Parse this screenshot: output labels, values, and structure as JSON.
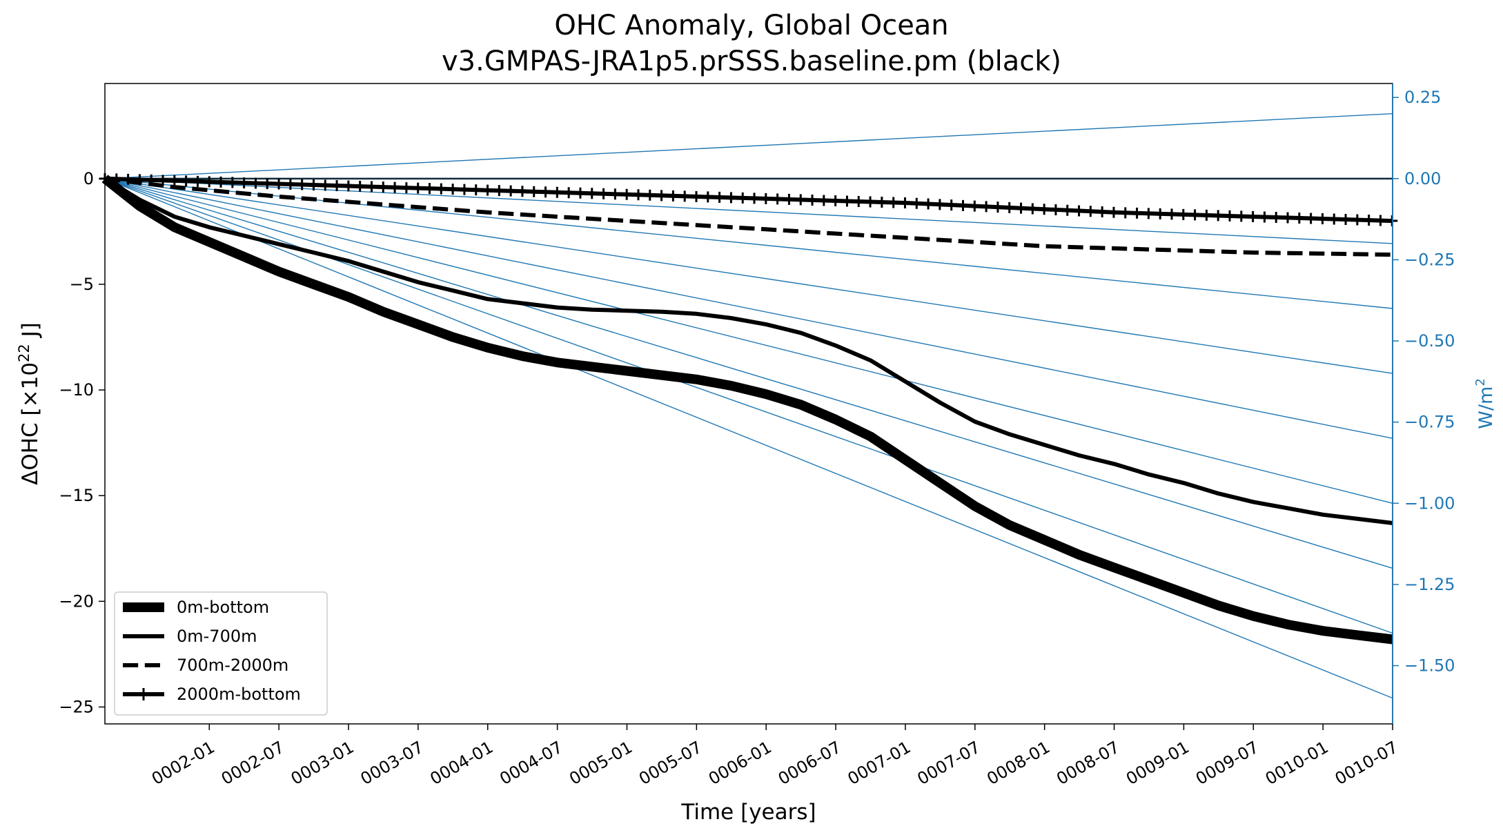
{
  "chart_data": {
    "type": "line",
    "title": "OHC Anomaly, Global Ocean",
    "subtitle": "v3.GMPAS-JRA1p5.prSSS.baseline.pm (black)",
    "xlabel": "Time [years]",
    "ylabel": "ΔOHC [×10",
    "ylabel_superscript": "22",
    "ylabel_suffix": " J]",
    "ylabel_right": "W/m",
    "ylabel_right_superscript": "2",
    "xlim": [
      1.25,
      10.5
    ],
    "ylim": [
      -25.8,
      4.5
    ],
    "ylim_right": [
      -1.6795,
      0.2929
    ],
    "grid": false,
    "legend_position": "lower-left",
    "x_ticks": [
      {
        "value": 2.0,
        "label": "0002-01"
      },
      {
        "value": 2.5,
        "label": "0002-07"
      },
      {
        "value": 3.0,
        "label": "0003-01"
      },
      {
        "value": 3.5,
        "label": "0003-07"
      },
      {
        "value": 4.0,
        "label": "0004-01"
      },
      {
        "value": 4.5,
        "label": "0004-07"
      },
      {
        "value": 5.0,
        "label": "0005-01"
      },
      {
        "value": 5.5,
        "label": "0005-07"
      },
      {
        "value": 6.0,
        "label": "0006-01"
      },
      {
        "value": 6.5,
        "label": "0006-07"
      },
      {
        "value": 7.0,
        "label": "0007-01"
      },
      {
        "value": 7.5,
        "label": "0007-07"
      },
      {
        "value": 8.0,
        "label": "0008-01"
      },
      {
        "value": 8.5,
        "label": "0008-07"
      },
      {
        "value": 9.0,
        "label": "0009-01"
      },
      {
        "value": 9.5,
        "label": "0009-07"
      },
      {
        "value": 10.0,
        "label": "0010-01"
      },
      {
        "value": 10.5,
        "label": "0010-07"
      }
    ],
    "y_ticks": [
      {
        "value": 0,
        "label": "0"
      },
      {
        "value": -5,
        "label": "−5"
      },
      {
        "value": -10,
        "label": "−10"
      },
      {
        "value": -15,
        "label": "−15"
      },
      {
        "value": -20,
        "label": "−20"
      },
      {
        "value": -25,
        "label": "−25"
      }
    ],
    "y_ticks_right": [
      {
        "value": 0.25,
        "label": "0.25"
      },
      {
        "value": 0.0,
        "label": "0.00"
      },
      {
        "value": -0.25,
        "label": "−0.25"
      },
      {
        "value": -0.5,
        "label": "−0.50"
      },
      {
        "value": -0.75,
        "label": "−0.75"
      },
      {
        "value": -1.0,
        "label": "−1.00"
      },
      {
        "value": -1.25,
        "label": "−1.25"
      },
      {
        "value": -1.5,
        "label": "−1.50"
      }
    ],
    "reference_lines": {
      "color": "#1f77b4",
      "origin_x": 1.25,
      "end_x": 10.5,
      "end_values_right": [
        0.2,
        0.0,
        -0.2,
        -0.4,
        -0.6,
        -0.8,
        -1.0,
        -1.2,
        -1.4,
        -1.6
      ]
    },
    "zero_line_color": "#0d2a3a",
    "series": [
      {
        "name": "0m-bottom",
        "color": "#000000",
        "style": "solid",
        "width": 14,
        "x": [
          1.25,
          1.5,
          1.75,
          2.0,
          2.25,
          2.5,
          2.75,
          3.0,
          3.25,
          3.5,
          3.75,
          4.0,
          4.25,
          4.5,
          4.75,
          5.0,
          5.25,
          5.5,
          5.75,
          6.0,
          6.25,
          6.5,
          6.75,
          7.0,
          7.25,
          7.5,
          7.75,
          8.0,
          8.25,
          8.5,
          8.75,
          9.0,
          9.25,
          9.5,
          9.75,
          10.0,
          10.25,
          10.5
        ],
        "values": [
          0.0,
          -1.3,
          -2.3,
          -3.0,
          -3.7,
          -4.4,
          -5.0,
          -5.6,
          -6.3,
          -6.9,
          -7.5,
          -8.0,
          -8.4,
          -8.7,
          -8.9,
          -9.1,
          -9.3,
          -9.5,
          -9.8,
          -10.2,
          -10.7,
          -11.4,
          -12.2,
          -13.3,
          -14.4,
          -15.5,
          -16.4,
          -17.1,
          -17.8,
          -18.4,
          -19.0,
          -19.6,
          -20.2,
          -20.7,
          -21.1,
          -21.4,
          -21.6,
          -21.8
        ]
      },
      {
        "name": "0m-700m",
        "color": "#000000",
        "style": "solid",
        "width": 6,
        "x": [
          1.25,
          1.5,
          1.75,
          2.0,
          2.25,
          2.5,
          2.75,
          3.0,
          3.25,
          3.5,
          3.75,
          4.0,
          4.25,
          4.5,
          4.75,
          5.0,
          5.25,
          5.5,
          5.75,
          6.0,
          6.25,
          6.5,
          6.75,
          7.0,
          7.25,
          7.5,
          7.75,
          8.0,
          8.25,
          8.5,
          8.75,
          9.0,
          9.25,
          9.5,
          9.75,
          10.0,
          10.25,
          10.5
        ],
        "values": [
          0.0,
          -1.0,
          -1.8,
          -2.3,
          -2.7,
          -3.1,
          -3.5,
          -3.9,
          -4.4,
          -4.9,
          -5.3,
          -5.7,
          -5.9,
          -6.1,
          -6.2,
          -6.25,
          -6.3,
          -6.4,
          -6.6,
          -6.9,
          -7.3,
          -7.9,
          -8.6,
          -9.6,
          -10.6,
          -11.5,
          -12.1,
          -12.6,
          -13.1,
          -13.5,
          -14.0,
          -14.4,
          -14.9,
          -15.3,
          -15.6,
          -15.9,
          -16.1,
          -16.3
        ]
      },
      {
        "name": "700m-2000m",
        "color": "#000000",
        "style": "dashed",
        "width": 6,
        "x": [
          1.25,
          1.5,
          1.75,
          2.0,
          2.5,
          3.0,
          3.5,
          4.0,
          4.5,
          5.0,
          5.5,
          6.0,
          6.5,
          7.0,
          7.5,
          8.0,
          8.5,
          9.0,
          9.5,
          10.0,
          10.5
        ],
        "values": [
          0.0,
          -0.2,
          -0.4,
          -0.55,
          -0.85,
          -1.1,
          -1.35,
          -1.6,
          -1.8,
          -2.0,
          -2.2,
          -2.4,
          -2.6,
          -2.8,
          -3.0,
          -3.2,
          -3.3,
          -3.4,
          -3.5,
          -3.55,
          -3.6
        ]
      },
      {
        "name": "2000m-bottom",
        "color": "#000000",
        "style": "solid-plus-markers",
        "width": 6,
        "x": [
          1.25,
          1.5,
          2.0,
          2.5,
          3.0,
          3.5,
          4.0,
          4.5,
          5.0,
          5.5,
          6.0,
          6.5,
          7.0,
          7.5,
          8.0,
          8.5,
          9.0,
          9.5,
          10.0,
          10.5
        ],
        "values": [
          0.0,
          -0.05,
          -0.15,
          -0.25,
          -0.35,
          -0.45,
          -0.55,
          -0.65,
          -0.75,
          -0.85,
          -0.95,
          -1.05,
          -1.15,
          -1.3,
          -1.45,
          -1.6,
          -1.7,
          -1.8,
          -1.9,
          -2.0
        ]
      }
    ]
  }
}
